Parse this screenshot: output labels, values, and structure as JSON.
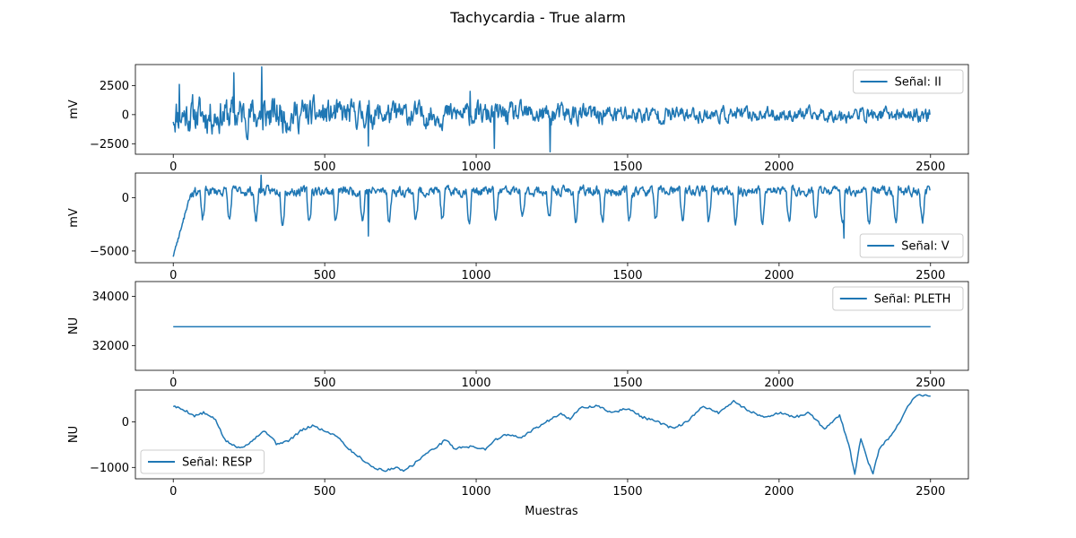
{
  "figure": {
    "title": "Tachycardia - True alarm",
    "xlabel": "Muestras"
  },
  "chart_data": [
    {
      "type": "line",
      "signal": "II",
      "ylabel": "mV",
      "legend": "Señal: II",
      "legend_loc": "upper-right",
      "xlim": [
        -125,
        2625
      ],
      "ylim": [
        -3400,
        4300
      ],
      "xticks": [
        0,
        500,
        1000,
        1500,
        2000,
        2500
      ],
      "yticks": [
        -2500,
        0,
        2500
      ],
      "ytick_labels": [
        "−2500",
        "0",
        "2500"
      ],
      "color": "#1f77b4",
      "samples": 2500,
      "seed": 11,
      "amp_profile": [
        [
          0,
          1500
        ],
        [
          300,
          1500
        ],
        [
          600,
          1100
        ],
        [
          1000,
          950
        ],
        [
          1300,
          900
        ],
        [
          1700,
          650
        ],
        [
          2000,
          550
        ],
        [
          2500,
          600
        ]
      ],
      "base": 0,
      "beat_every": 88,
      "beat_height": 0,
      "events": [
        {
          "x": 10,
          "y": 900
        },
        {
          "x": 20,
          "y": 2600
        },
        {
          "x": 200,
          "y": 3600
        },
        {
          "x": 292,
          "y": 4100
        },
        {
          "x": 296,
          "y": -1300
        },
        {
          "x": 645,
          "y": -2700
        },
        {
          "x": 1060,
          "y": -2900
        },
        {
          "x": 1245,
          "y": -3200
        },
        {
          "x": 980,
          "y": 2000
        }
      ]
    },
    {
      "type": "line",
      "signal": "V",
      "ylabel": "mV",
      "legend": "Señal: V",
      "legend_loc": "lower-right",
      "xlim": [
        -125,
        2625
      ],
      "ylim": [
        -6100,
        2300
      ],
      "xticks": [
        0,
        500,
        1000,
        1500,
        2000,
        2500
      ],
      "yticks": [
        -5000,
        0
      ],
      "ytick_labels": [
        "−5000",
        "0"
      ],
      "color": "#1f77b4",
      "samples": 2500,
      "seed": 23,
      "amp_profile": [
        [
          0,
          450
        ],
        [
          2500,
          450
        ]
      ],
      "base": 600,
      "beat_every": 88,
      "beat_height": -2700,
      "start_dip": -5500,
      "events": [
        {
          "x": 290,
          "y": 2100
        },
        {
          "x": 645,
          "y": -3600
        },
        {
          "x": 2215,
          "y": -3800
        }
      ]
    },
    {
      "type": "line",
      "signal": "PLETH",
      "ylabel": "NU",
      "legend": "Señal: PLETH",
      "legend_loc": "upper-right",
      "xlim": [
        -125,
        2625
      ],
      "ylim": [
        31000,
        34600
      ],
      "xticks": [
        0,
        500,
        1000,
        1500,
        2000,
        2500
      ],
      "yticks": [
        32000,
        34000
      ],
      "ytick_labels": [
        "32000",
        "34000"
      ],
      "color": "#1f77b4",
      "constant": 32767
    },
    {
      "type": "line",
      "signal": "RESP",
      "ylabel": "NU",
      "legend": "Señal: RESP",
      "legend_loc": "lower-left",
      "xlim": [
        -125,
        2625
      ],
      "ylim": [
        -1250,
        700
      ],
      "xticks": [
        0,
        500,
        1000,
        1500,
        2000,
        2500
      ],
      "yticks": [
        -1000,
        0
      ],
      "ytick_labels": [
        "−1000",
        "0"
      ],
      "color": "#1f77b4",
      "keypoints": [
        [
          0,
          350
        ],
        [
          40,
          250
        ],
        [
          70,
          130
        ],
        [
          100,
          200
        ],
        [
          140,
          50
        ],
        [
          170,
          -400
        ],
        [
          210,
          -560
        ],
        [
          240,
          -520
        ],
        [
          270,
          -350
        ],
        [
          300,
          -200
        ],
        [
          320,
          -300
        ],
        [
          340,
          -480
        ],
        [
          380,
          -420
        ],
        [
          420,
          -200
        ],
        [
          460,
          -80
        ],
        [
          500,
          -200
        ],
        [
          540,
          -300
        ],
        [
          580,
          -600
        ],
        [
          620,
          -800
        ],
        [
          660,
          -1000
        ],
        [
          700,
          -1080
        ],
        [
          730,
          -1000
        ],
        [
          760,
          -1060
        ],
        [
          790,
          -950
        ],
        [
          830,
          -720
        ],
        [
          880,
          -500
        ],
        [
          900,
          -380
        ],
        [
          930,
          -600
        ],
        [
          960,
          -540
        ],
        [
          1000,
          -560
        ],
        [
          1030,
          -600
        ],
        [
          1060,
          -400
        ],
        [
          1100,
          -280
        ],
        [
          1150,
          -350
        ],
        [
          1180,
          -200
        ],
        [
          1220,
          -50
        ],
        [
          1280,
          200
        ],
        [
          1310,
          50
        ],
        [
          1340,
          300
        ],
        [
          1400,
          350
        ],
        [
          1450,
          200
        ],
        [
          1500,
          300
        ],
        [
          1550,
          100
        ],
        [
          1600,
          0
        ],
        [
          1650,
          -150
        ],
        [
          1700,
          20
        ],
        [
          1750,
          350
        ],
        [
          1800,
          200
        ],
        [
          1850,
          450
        ],
        [
          1900,
          250
        ],
        [
          1950,
          100
        ],
        [
          2000,
          200
        ],
        [
          2050,
          100
        ],
        [
          2100,
          200
        ],
        [
          2150,
          -150
        ],
        [
          2200,
          150
        ],
        [
          2230,
          -500
        ],
        [
          2250,
          -1150
        ],
        [
          2270,
          -350
        ],
        [
          2290,
          -800
        ],
        [
          2310,
          -1150
        ],
        [
          2330,
          -600
        ],
        [
          2370,
          -300
        ],
        [
          2400,
          0
        ],
        [
          2430,
          400
        ],
        [
          2460,
          600
        ],
        [
          2500,
          570
        ]
      ],
      "wobble": 25,
      "seed": 5
    }
  ]
}
